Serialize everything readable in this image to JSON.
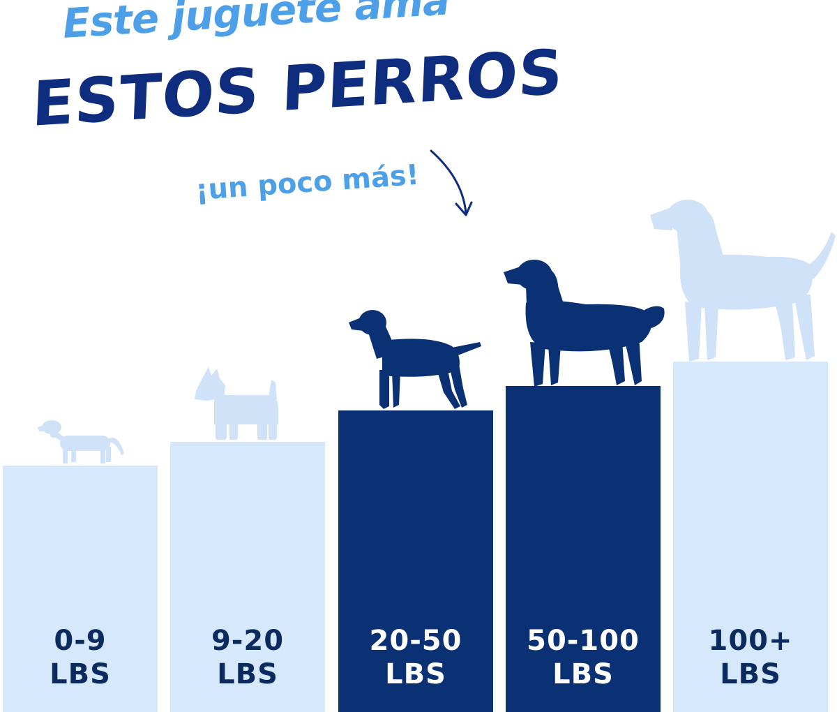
{
  "headline": {
    "line1": "Este juguete ama",
    "line2": "ESTOS PERROS",
    "line3": "¡un poco más!"
  },
  "colors": {
    "accent_light": "#4d9fe8",
    "accent_dark": "#0f2d7e",
    "bar_light": "#d6e8fb",
    "bar_dark": "#0a3173",
    "dog_light": "#cfe2f7",
    "dog_dark": "#0a3173"
  },
  "weight_classes": [
    {
      "range": "0-9",
      "unit": "LBS",
      "highlighted": false,
      "dog_icon": "dachshund-icon"
    },
    {
      "range": "9-20",
      "unit": "LBS",
      "highlighted": false,
      "dog_icon": "scottish-terrier-icon"
    },
    {
      "range": "20-50",
      "unit": "LBS",
      "highlighted": true,
      "dog_icon": "labrador-icon"
    },
    {
      "range": "50-100",
      "unit": "LBS",
      "highlighted": true,
      "dog_icon": "golden-retriever-icon"
    },
    {
      "range": "100+",
      "unit": "LBS",
      "highlighted": false,
      "dog_icon": "great-dane-icon"
    }
  ]
}
